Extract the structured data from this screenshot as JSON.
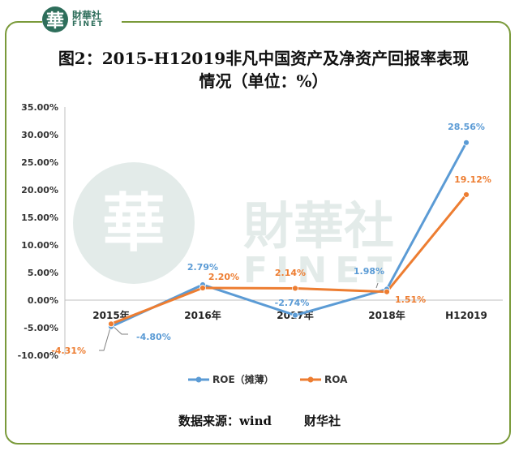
{
  "logo": {
    "badge": "華",
    "cn": "財華社",
    "en": "FINET"
  },
  "title_line1": "图2：2015-H12019非凡中国资产及净资产回报率表现",
  "title_line2": "情况（单位：%）",
  "watermark": {
    "cn": "財華社",
    "en": "FINET"
  },
  "source": {
    "label": "数据来源：wind",
    "publisher": "财华社"
  },
  "colors": {
    "roe": "#5b9bd5",
    "roa": "#ed7d31",
    "frame": "#7a9a3a",
    "axis": "#bfbfbf"
  },
  "chart_data": {
    "type": "line",
    "categories": [
      "2015年",
      "2016年",
      "2017年",
      "2018年",
      "H12019"
    ],
    "ylim": [
      -10,
      35
    ],
    "yticks": [
      "35.00%",
      "30.00%",
      "25.00%",
      "20.00%",
      "15.00%",
      "10.00%",
      "5.00%",
      "0.00%",
      "-5.00%",
      "-10.00%"
    ],
    "series": [
      {
        "name": "ROE（摊薄）",
        "values": [
          -4.8,
          2.79,
          -2.74,
          1.98,
          28.56
        ],
        "labels": [
          "-4.80%",
          "2.79%",
          "-2.74%",
          "1.98%",
          "28.56%"
        ]
      },
      {
        "name": "ROA",
        "values": [
          -4.31,
          2.2,
          2.14,
          1.51,
          19.12
        ],
        "labels": [
          "-4.31%",
          "2.20%",
          "2.14%",
          "1.51%",
          "19.12%"
        ]
      }
    ],
    "legend": "bottom"
  }
}
